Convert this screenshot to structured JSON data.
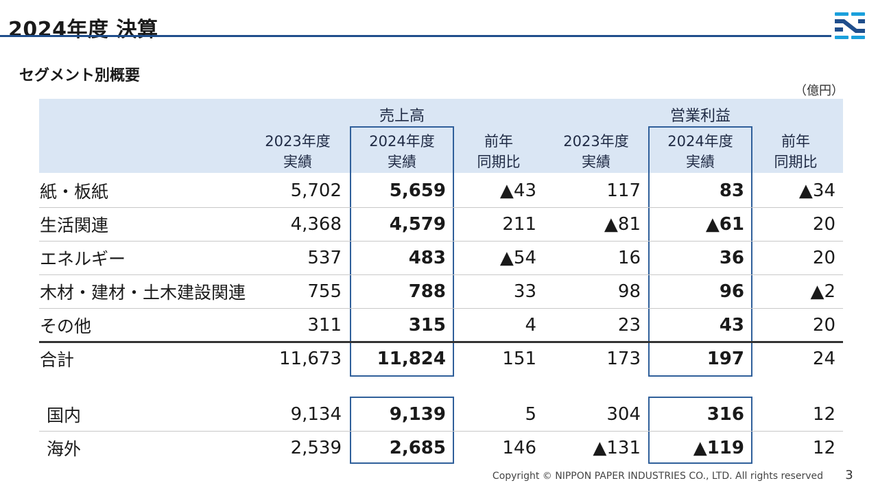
{
  "title": "2024年度 決算",
  "subtitle": "セグメント別概要",
  "unit": "（億円）",
  "colors": {
    "accent": "#1f4e8c",
    "header_band": "#dae6f4",
    "box": "#2f5f9a"
  },
  "groups": {
    "sales": "売上高",
    "profit": "営業利益"
  },
  "column_headers": [
    [
      "2023年度",
      "実績"
    ],
    [
      "2024年度",
      "実績"
    ],
    [
      "前年",
      "同期比"
    ],
    [
      "2023年度",
      "実績"
    ],
    [
      "2024年度",
      "実績"
    ],
    [
      "前年",
      "同期比"
    ]
  ],
  "rows": [
    {
      "label": "紙・板紙",
      "values": [
        "5,702",
        "5,659",
        "▲43",
        "117",
        "83",
        "▲34"
      ]
    },
    {
      "label": "生活関連",
      "values": [
        "4,368",
        "4,579",
        "211",
        "▲81",
        "▲61",
        "20"
      ]
    },
    {
      "label": "エネルギー",
      "values": [
        "537",
        "483",
        "▲54",
        "16",
        "36",
        "20"
      ]
    },
    {
      "label": "木材・建材・土木建設関連",
      "values": [
        "755",
        "788",
        "33",
        "98",
        "96",
        "▲2"
      ]
    },
    {
      "label": "その他",
      "values": [
        "311",
        "315",
        "4",
        "23",
        "43",
        "20"
      ]
    },
    {
      "label": "合計",
      "values": [
        "11,673",
        "11,824",
        "151",
        "173",
        "197",
        "24"
      ]
    }
  ],
  "region_rows": [
    {
      "label": "国内",
      "values": [
        "9,134",
        "9,139",
        "5",
        "304",
        "316",
        "12"
      ]
    },
    {
      "label": "海外",
      "values": [
        "2,539",
        "2,685",
        "146",
        "▲131",
        "▲119",
        "12"
      ]
    }
  ],
  "footer": "Copyright © NIPPON PAPER INDUSTRIES CO., LTD. All rights reserved",
  "page_number": "3"
}
